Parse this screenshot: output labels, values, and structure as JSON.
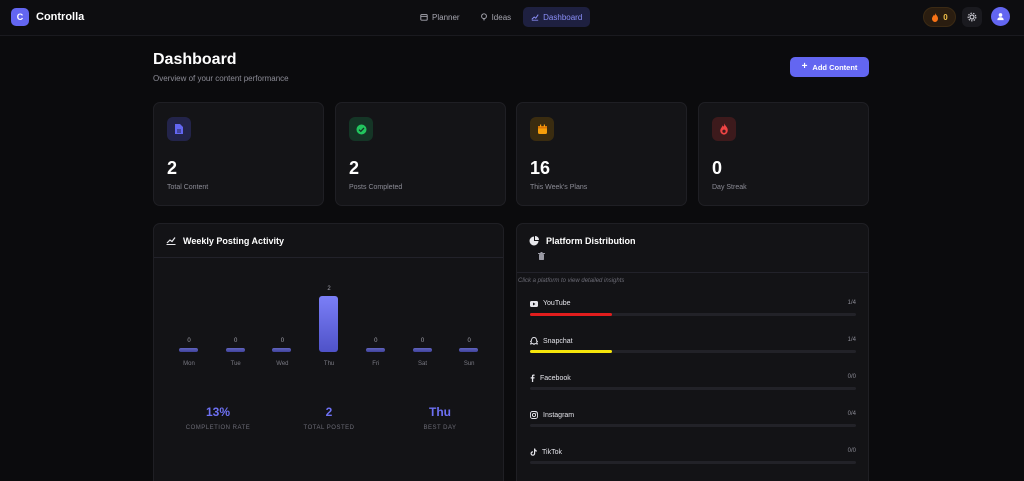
{
  "app": {
    "logo_letter": "C",
    "name": "Controlla"
  },
  "nav": [
    {
      "label": "Planner",
      "icon": "calendar-icon",
      "active": false
    },
    {
      "label": "Ideas",
      "icon": "lightbulb-icon",
      "active": false
    },
    {
      "label": "Dashboard",
      "icon": "chart-line-icon",
      "active": true
    }
  ],
  "header": {
    "streak_count": "0"
  },
  "page": {
    "title": "Dashboard",
    "subtitle": "Overview of your content performance",
    "add_button": "Add Content"
  },
  "stats": [
    {
      "value": "2",
      "label": "Total Content",
      "icon": "document-icon",
      "color": "#6366f1"
    },
    {
      "value": "2",
      "label": "Posts Completed",
      "icon": "check-circle-icon",
      "color": "#22c55e"
    },
    {
      "value": "16",
      "label": "This Week's Plans",
      "icon": "calendar-icon",
      "color": "#f59e0b"
    },
    {
      "value": "0",
      "label": "Day Streak",
      "icon": "flame-icon",
      "color": "#ef4444"
    }
  ],
  "weekly": {
    "title": "Weekly Posting Activity",
    "metrics": [
      {
        "value": "13%",
        "label": "COMPLETION RATE"
      },
      {
        "value": "2",
        "label": "TOTAL POSTED"
      },
      {
        "value": "Thu",
        "label": "BEST DAY"
      }
    ]
  },
  "chart_data": {
    "type": "bar",
    "categories": [
      "Mon",
      "Tue",
      "Wed",
      "Thu",
      "Fri",
      "Sat",
      "Sun"
    ],
    "values": [
      0,
      0,
      0,
      2,
      0,
      0,
      0
    ],
    "data_labels": [
      "0",
      "0",
      "0",
      "2",
      "0",
      "0",
      "0"
    ]
  },
  "platforms": {
    "title": "Platform Distribution",
    "hint": "Click a platform to view detailed insights",
    "items": [
      {
        "name": "YouTube",
        "count": "1/4",
        "fraction": 0.25,
        "color": "#e11d1d",
        "icon": "youtube-icon"
      },
      {
        "name": "Snapchat",
        "count": "1/4",
        "fraction": 0.25,
        "color": "#f5e50b",
        "icon": "ghost-icon"
      },
      {
        "name": "Facebook",
        "count": "0/0",
        "fraction": 0,
        "color": "#1877f2",
        "icon": "facebook-icon"
      },
      {
        "name": "Instagram",
        "count": "0/4",
        "fraction": 0,
        "color": "#e1306c",
        "icon": "instagram-icon"
      },
      {
        "name": "TikTok",
        "count": "0/0",
        "fraction": 0,
        "color": "#ffffff",
        "icon": "tiktok-icon"
      }
    ]
  }
}
